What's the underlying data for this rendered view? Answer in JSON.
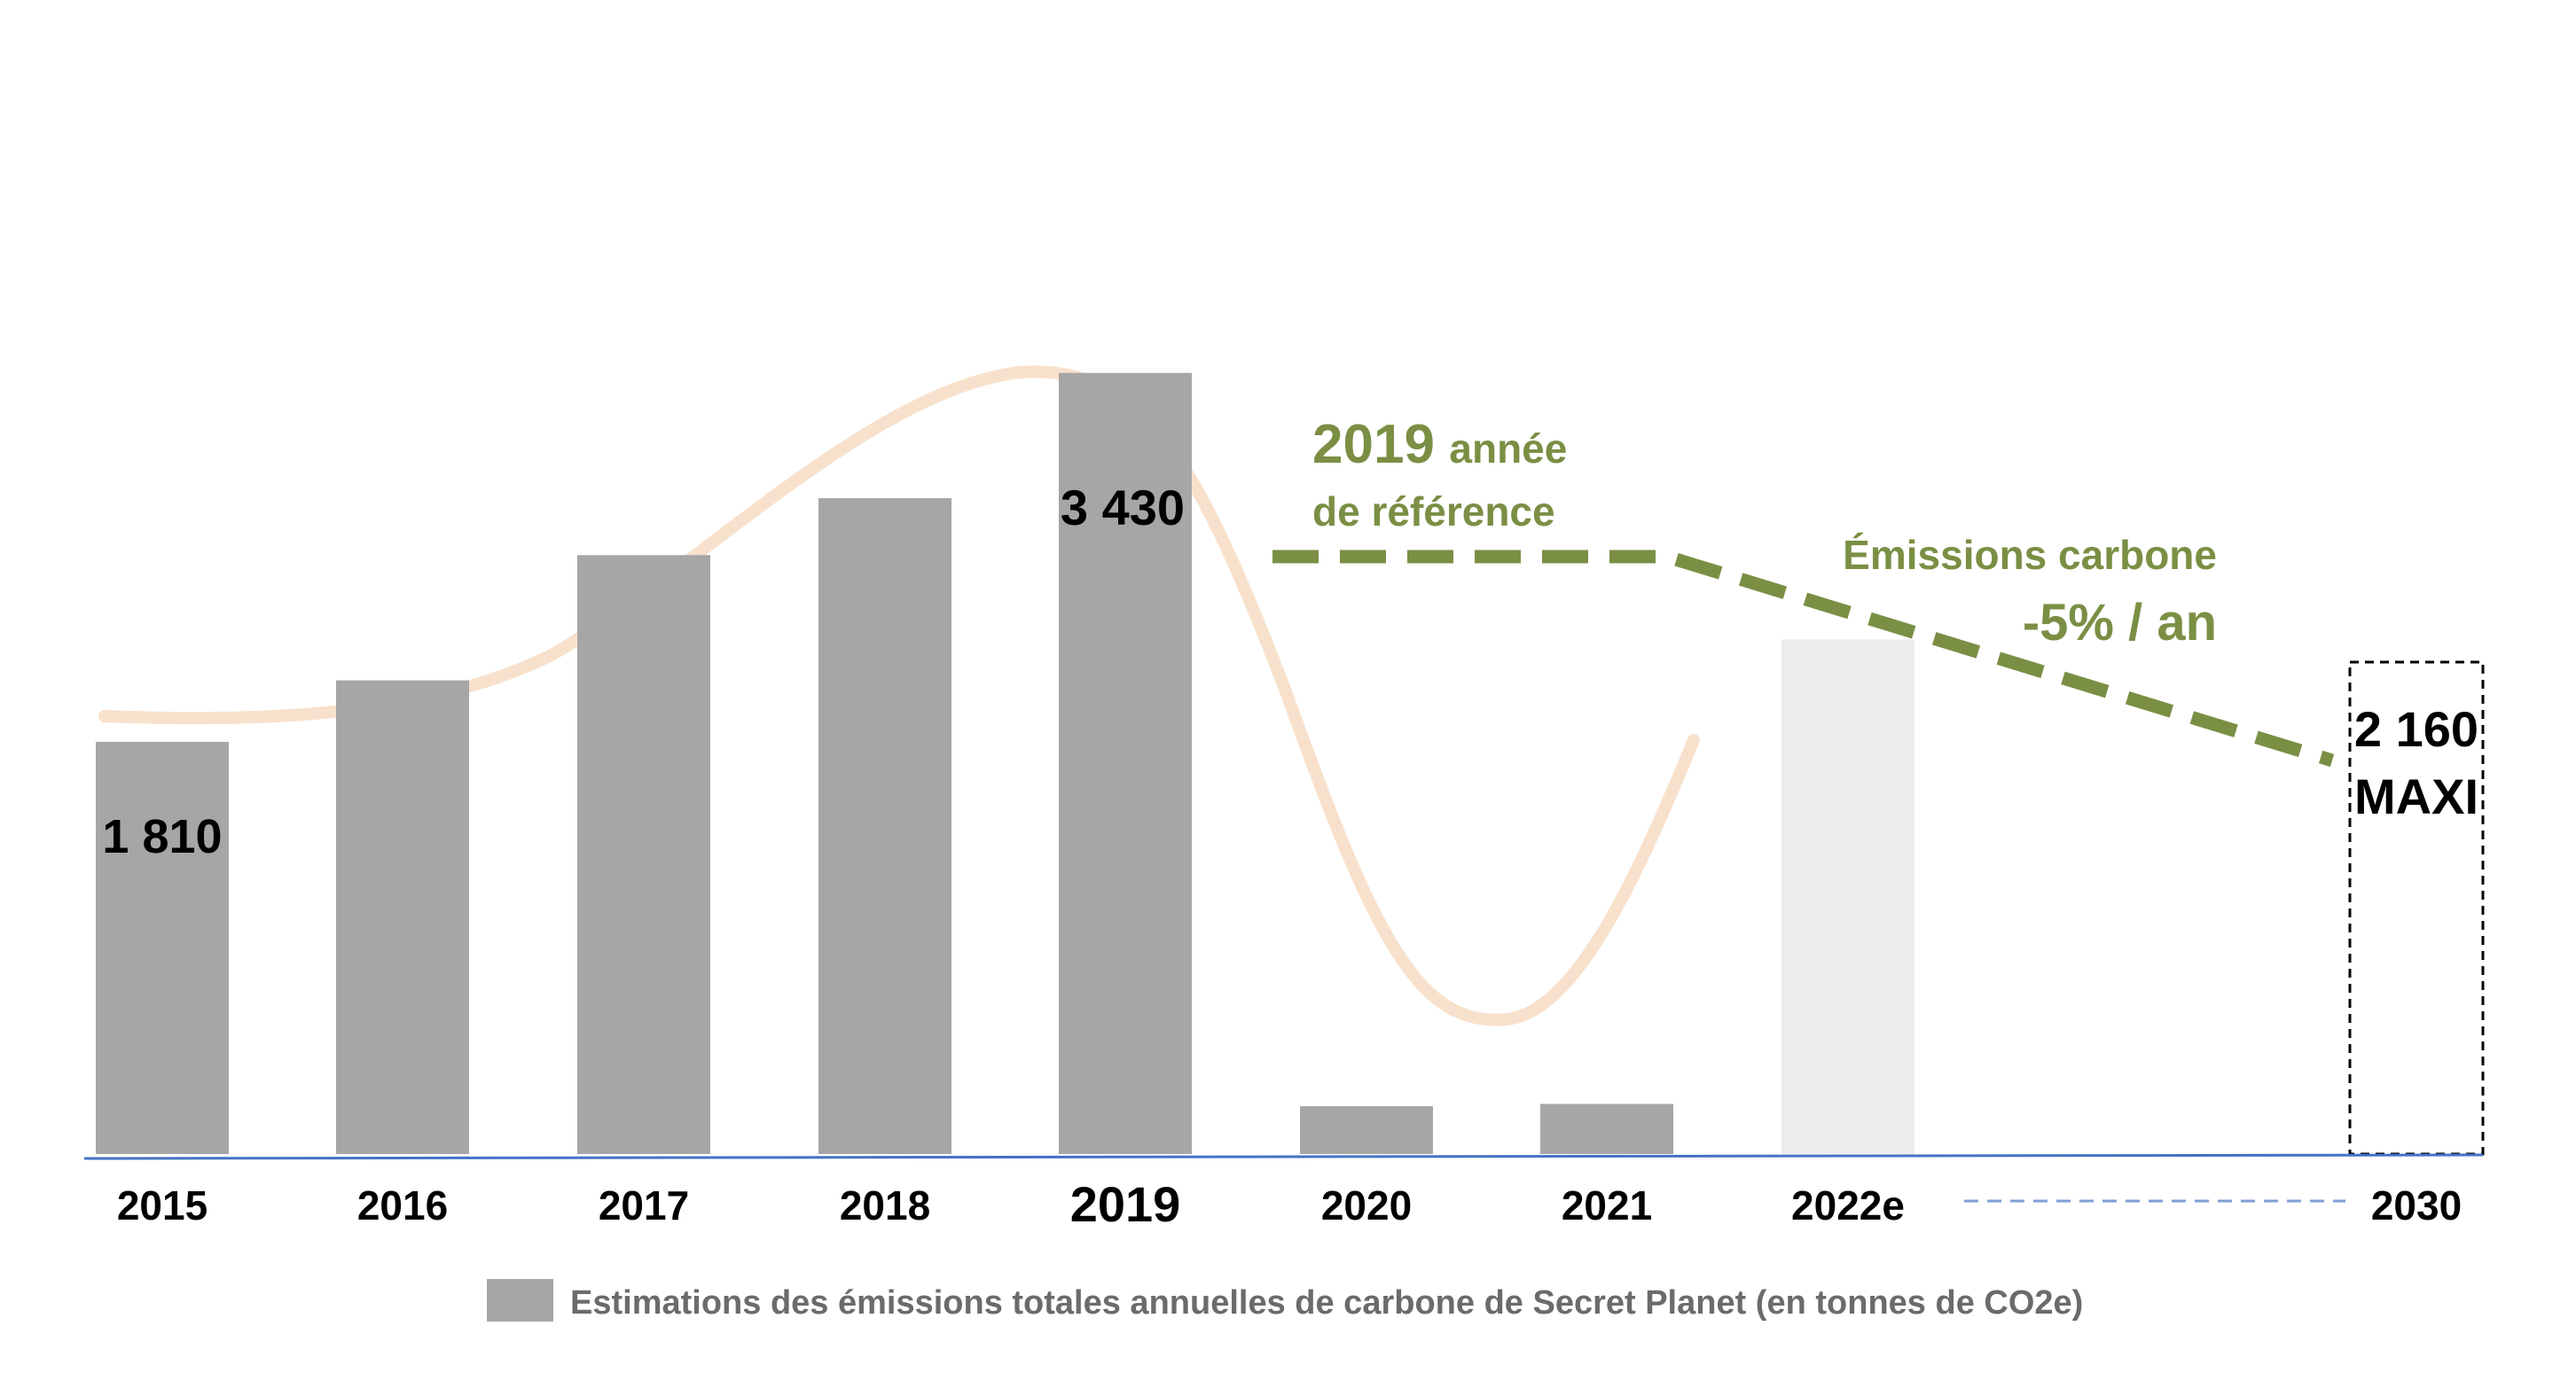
{
  "chart_data": {
    "type": "bar",
    "categories": [
      "2015",
      "2016",
      "2017",
      "2018",
      "2019",
      "2020",
      "2021",
      "2022e",
      "2030"
    ],
    "values": [
      1810,
      2080,
      2630,
      2880,
      3430,
      210,
      220,
      2260,
      2160
    ],
    "value_labels": {
      "2015": "1 810",
      "2019": "3 430",
      "2030": "2 160"
    },
    "target_label": "MAXI",
    "ylim": [
      0,
      3900
    ],
    "grid": false,
    "bar_styles": {
      "default": "#a6a6a6",
      "estimate": "#ececec",
      "target": "dashed-outline"
    },
    "legend": {
      "label": "Estimations des émissions totales annuelles de carbone de Secret Planet (en tonnes de CO2e)",
      "color": "#a6a6a6",
      "position": "bottom"
    },
    "annotations": {
      "reference_year": "2019",
      "reference_text": "année",
      "reference_text_2": "de référence",
      "trend_label": "Émissions carbone",
      "trend_rate": "-5% / an"
    },
    "colors": {
      "trend_line": "#7a8f44",
      "curve": "#f8e1cc",
      "axis": "#4472c4"
    }
  }
}
